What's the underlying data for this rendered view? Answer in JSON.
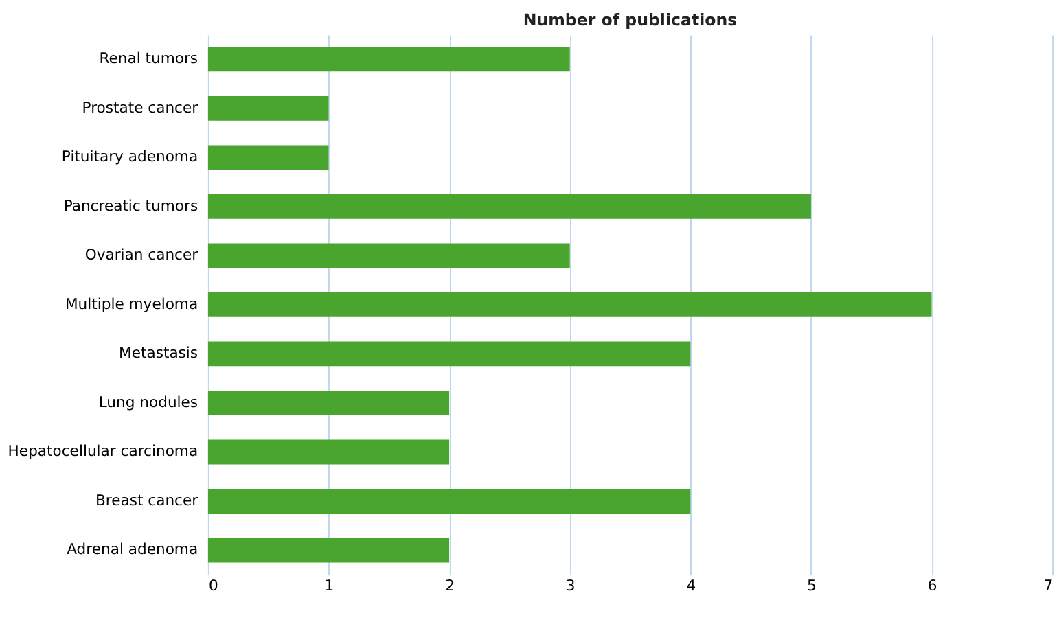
{
  "chart_data": {
    "type": "bar",
    "orientation": "horizontal",
    "title": "Number of publications",
    "categories": [
      "Renal tumors",
      "Prostate cancer",
      "Pituitary adenoma",
      "Pancreatic tumors",
      "Ovarian cancer",
      "Multiple myeloma",
      "Metastasis",
      "Lung nodules",
      "Hepatocellular carcinoma",
      "Breast cancer",
      "Adrenal adenoma"
    ],
    "values": [
      3,
      1,
      1,
      5,
      3,
      6,
      4,
      2,
      2,
      4,
      2
    ],
    "color": "#4aa52e",
    "xlim": [
      0,
      7
    ],
    "xticks": [
      0,
      1,
      2,
      3,
      4,
      5,
      6,
      7
    ],
    "grid": "x"
  }
}
